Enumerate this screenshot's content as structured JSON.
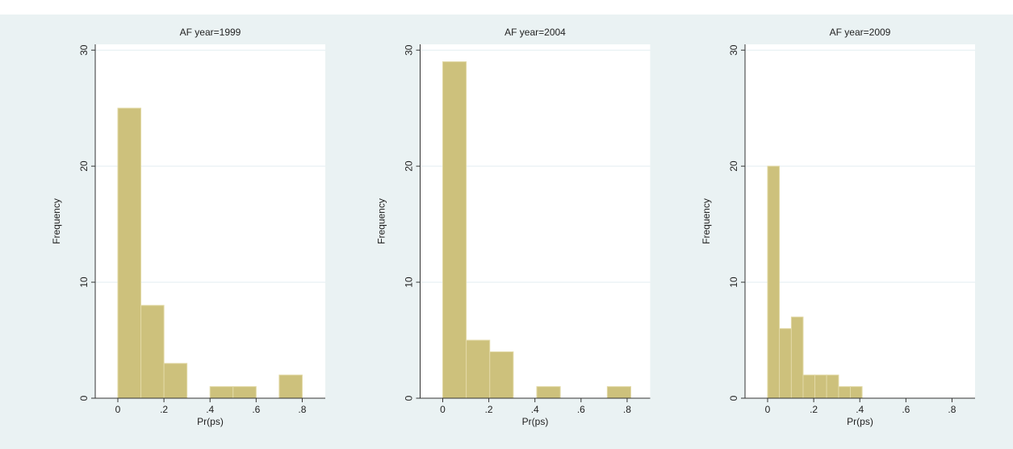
{
  "chart_data": [
    {
      "type": "histogram",
      "title": "AF year=1999",
      "x_label": "Pr(ps)",
      "y_label": "Frequency",
      "color": "#cdc17c",
      "bins": [
        0,
        0.1,
        0.2,
        0.3,
        0.4,
        0.5,
        0.6,
        0.7,
        0.8
      ],
      "values": [
        25,
        8,
        3,
        0,
        1,
        1,
        0,
        2
      ],
      "xlim": [
        -0.098,
        0.9
      ],
      "ylim": [
        0,
        30.5
      ],
      "yticks": [
        0,
        10,
        20,
        30
      ],
      "xticks": [
        0,
        {
          "value": 0.2,
          "label": ".2"
        },
        {
          "value": 0.4,
          "label": ".4"
        },
        {
          "value": 0.6,
          "label": ".6"
        },
        {
          "value": 0.8,
          "label": ".8"
        }
      ],
      "grid": true
    },
    {
      "type": "histogram",
      "title": "AF year=2004",
      "x_label": "Pr(ps)",
      "y_label": "Frequency",
      "color": "#cdc17c",
      "bins": [
        0,
        0.102,
        0.204,
        0.306,
        0.408,
        0.51,
        0.612,
        0.714,
        0.816
      ],
      "values": [
        29,
        5,
        4,
        0,
        1,
        0,
        0,
        1
      ],
      "xlim": [
        -0.098,
        0.9
      ],
      "ylim": [
        0,
        30.5
      ],
      "yticks": [
        0,
        10,
        20,
        30
      ],
      "xticks": [
        0,
        {
          "value": 0.2,
          "label": ".2"
        },
        {
          "value": 0.4,
          "label": ".4"
        },
        {
          "value": 0.6,
          "label": ".6"
        },
        {
          "value": 0.8,
          "label": ".8"
        }
      ],
      "grid": true
    },
    {
      "type": "histogram",
      "title": "AF year=2009",
      "x_label": "Pr(ps)",
      "y_label": "Frequency",
      "color": "#cdc17c",
      "bins": [
        0,
        0.051,
        0.103,
        0.154,
        0.205,
        0.256,
        0.308,
        0.359,
        0.41
      ],
      "values": [
        20,
        6,
        7,
        2,
        2,
        2,
        1,
        1
      ],
      "xlim": [
        -0.098,
        0.9
      ],
      "ylim": [
        0,
        30.5
      ],
      "yticks": [
        0,
        10,
        20,
        30
      ],
      "xticks": [
        0,
        {
          "value": 0.2,
          "label": ".2"
        },
        {
          "value": 0.4,
          "label": ".4"
        },
        {
          "value": 0.6,
          "label": ".6"
        },
        {
          "value": 0.8,
          "label": ".8"
        }
      ],
      "grid": true
    }
  ]
}
